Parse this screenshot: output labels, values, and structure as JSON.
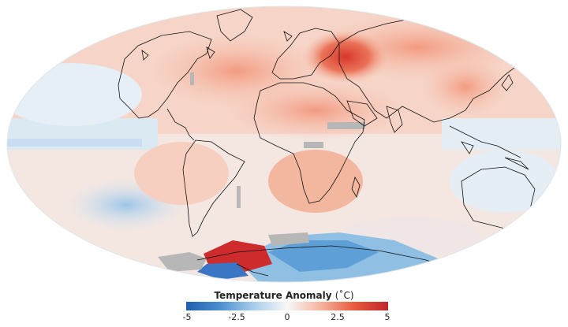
{
  "map": {
    "projection": "Mollweide",
    "ocean_color": "#eef3f6",
    "coastline_color": "#111111",
    "no_data_color": "#b5b5b5"
  },
  "legend": {
    "title": "Temperature Anomaly",
    "unit": "(˚C)",
    "min": -5,
    "max": 5,
    "ticks": [
      "-5",
      "-2.5",
      "0",
      "2.5",
      "5"
    ],
    "colors": [
      "#1f5fb0",
      "#4a8fd0",
      "#a8cdea",
      "#f7f7f7",
      "#f7b39e",
      "#e65a3c",
      "#c0242a"
    ]
  }
}
